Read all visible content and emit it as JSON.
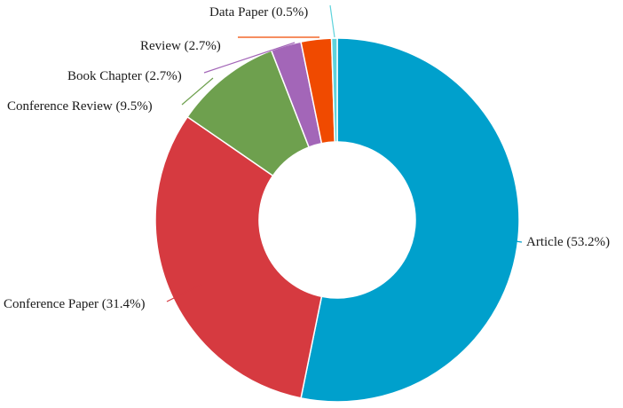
{
  "chart_data": {
    "type": "pie",
    "variant": "donut",
    "title": "",
    "legend": "none",
    "slices": [
      {
        "name": "Article",
        "value": 53.2,
        "label": "Article (53.2%)",
        "color": "#00a0cc"
      },
      {
        "name": "Conference Paper",
        "value": 31.4,
        "label": "Conference Paper (31.4%)",
        "color": "#d63a40"
      },
      {
        "name": "Conference Review",
        "value": 9.5,
        "label": "Conference Review (9.5%)",
        "color": "#6ea04e"
      },
      {
        "name": "Book Chapter",
        "value": 2.7,
        "label": "Book Chapter (2.7%)",
        "color": "#a366b8"
      },
      {
        "name": "Review",
        "value": 2.7,
        "label": "Review (2.7%)",
        "color": "#f04a00"
      },
      {
        "name": "Data Paper",
        "value": 0.5,
        "label": "Data Paper (0.5%)",
        "color": "#5fd3dc"
      }
    ]
  }
}
